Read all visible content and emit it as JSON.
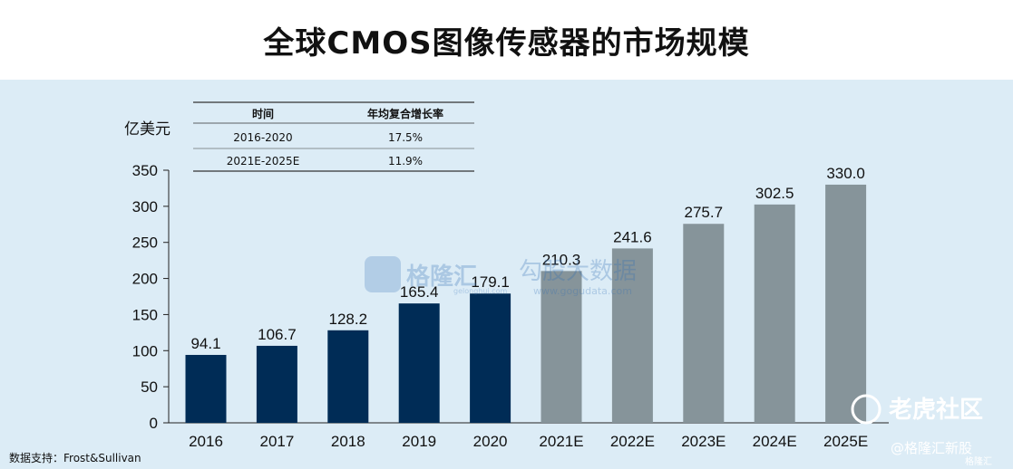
{
  "title": "全球CMOS图像传感器的市场规模",
  "source": "数据支持：Frost&Sullivan",
  "cagr_table": {
    "headers": [
      "时间",
      "年均复合增长率"
    ],
    "rows": [
      [
        "2016-2020",
        "17.5%"
      ],
      [
        "2021E-2025E",
        "11.9%"
      ]
    ]
  },
  "watermarks": {
    "center_brand": "格隆汇",
    "center_small_url": "gelonghui.com",
    "center_right": "勾股大数据",
    "center_right_url": "www.gogudata.com",
    "corner_community": "老虎社区",
    "corner_handle": "@格隆汇新股",
    "corner_tag": "格隆汇"
  },
  "colors": {
    "actual": "#002c56",
    "forecast": "#86949a",
    "background": "#dcecf6"
  },
  "chart_data": {
    "type": "bar",
    "ylabel": "亿美元",
    "ylim": [
      0,
      350
    ],
    "yticks": [
      0,
      50,
      100,
      150,
      200,
      250,
      300,
      350
    ],
    "grid": false,
    "categories": [
      "2016",
      "2017",
      "2018",
      "2019",
      "2020",
      "2021E",
      "2022E",
      "2023E",
      "2024E",
      "2025E"
    ],
    "values": [
      94.1,
      106.7,
      128.2,
      165.4,
      179.1,
      210.3,
      241.6,
      275.7,
      302.5,
      330.0
    ],
    "value_labels": [
      "94.1",
      "106.7",
      "128.2",
      "165.4",
      "179.1",
      "210.3",
      "241.6",
      "275.7",
      "302.5",
      "330.0"
    ],
    "forecast_from_index": 5
  }
}
